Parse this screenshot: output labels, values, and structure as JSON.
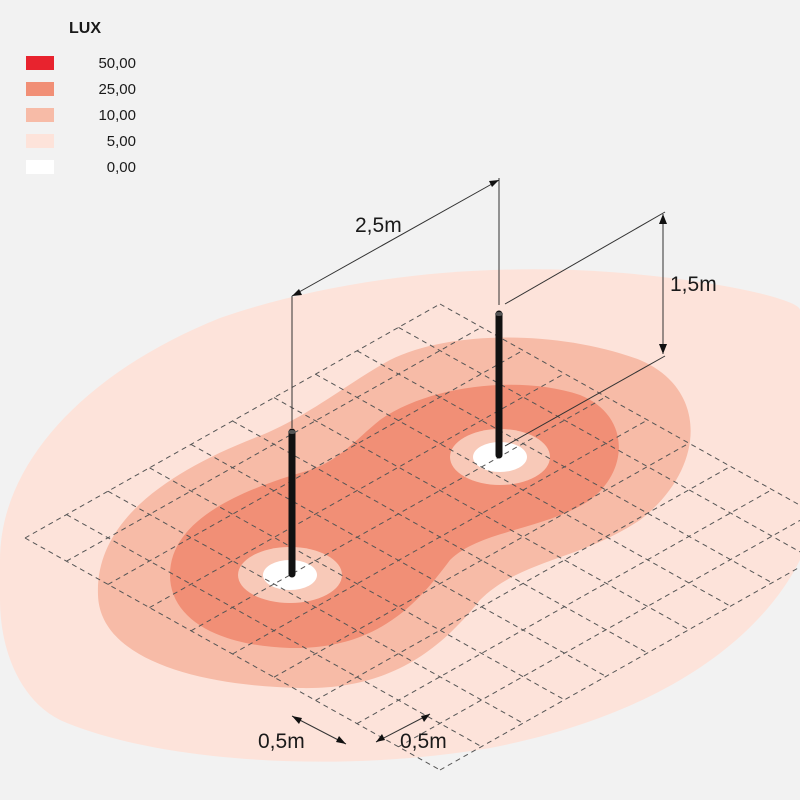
{
  "legend": {
    "title": "LUX",
    "items": [
      {
        "label": "50,00",
        "color": "#e8232e"
      },
      {
        "label": "25,00",
        "color": "#f18f76"
      },
      {
        "label": "10,00",
        "color": "#f7bba7"
      },
      {
        "label": "5,00",
        "color": "#fde3da"
      },
      {
        "label": "0,00",
        "color": "#ffffff"
      }
    ]
  },
  "dimensions": {
    "pole_spacing": "2,5m",
    "pole_height": "1,5m",
    "grid_left": "0,5m",
    "grid_right": "0,5m"
  },
  "colors": {
    "zone_5": "#fde3da",
    "zone_10": "#f7bba7",
    "zone_25": "#f18f76",
    "center_ring": "#f8c9b8",
    "center": "#ffffff",
    "pole": "#111111",
    "grid": "#555555"
  }
}
